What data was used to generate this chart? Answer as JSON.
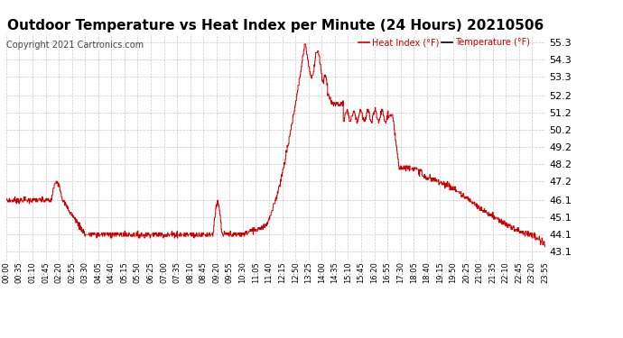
{
  "title": "Outdoor Temperature vs Heat Index per Minute (24 Hours) 20210506",
  "copyright": "Copyright 2021 Cartronics.com",
  "legend_heat": "Heat Index (°F)",
  "legend_temp": "Temperature (°F)",
  "yticks": [
    43.1,
    44.1,
    45.1,
    46.1,
    47.2,
    48.2,
    49.2,
    50.2,
    51.2,
    52.2,
    53.3,
    54.3,
    55.3
  ],
  "ymin": 42.6,
  "ymax": 55.8,
  "line_color": "#cc0000",
  "background_color": "#ffffff",
  "grid_color": "#bbbbbb",
  "title_fontsize": 11,
  "copyright_color": "#444444",
  "legend_color": "#cc0000",
  "xtick_labels": [
    "00:00",
    "00:35",
    "01:10",
    "01:45",
    "02:20",
    "02:55",
    "03:30",
    "04:05",
    "04:40",
    "05:15",
    "05:50",
    "06:25",
    "07:00",
    "07:35",
    "08:10",
    "08:45",
    "09:20",
    "09:55",
    "10:30",
    "11:05",
    "11:40",
    "12:15",
    "12:50",
    "13:25",
    "14:00",
    "14:35",
    "15:10",
    "15:45",
    "16:20",
    "16:55",
    "17:30",
    "18:05",
    "18:40",
    "19:15",
    "19:50",
    "20:25",
    "21:00",
    "21:35",
    "22:10",
    "22:45",
    "23:20",
    "23:55"
  ]
}
